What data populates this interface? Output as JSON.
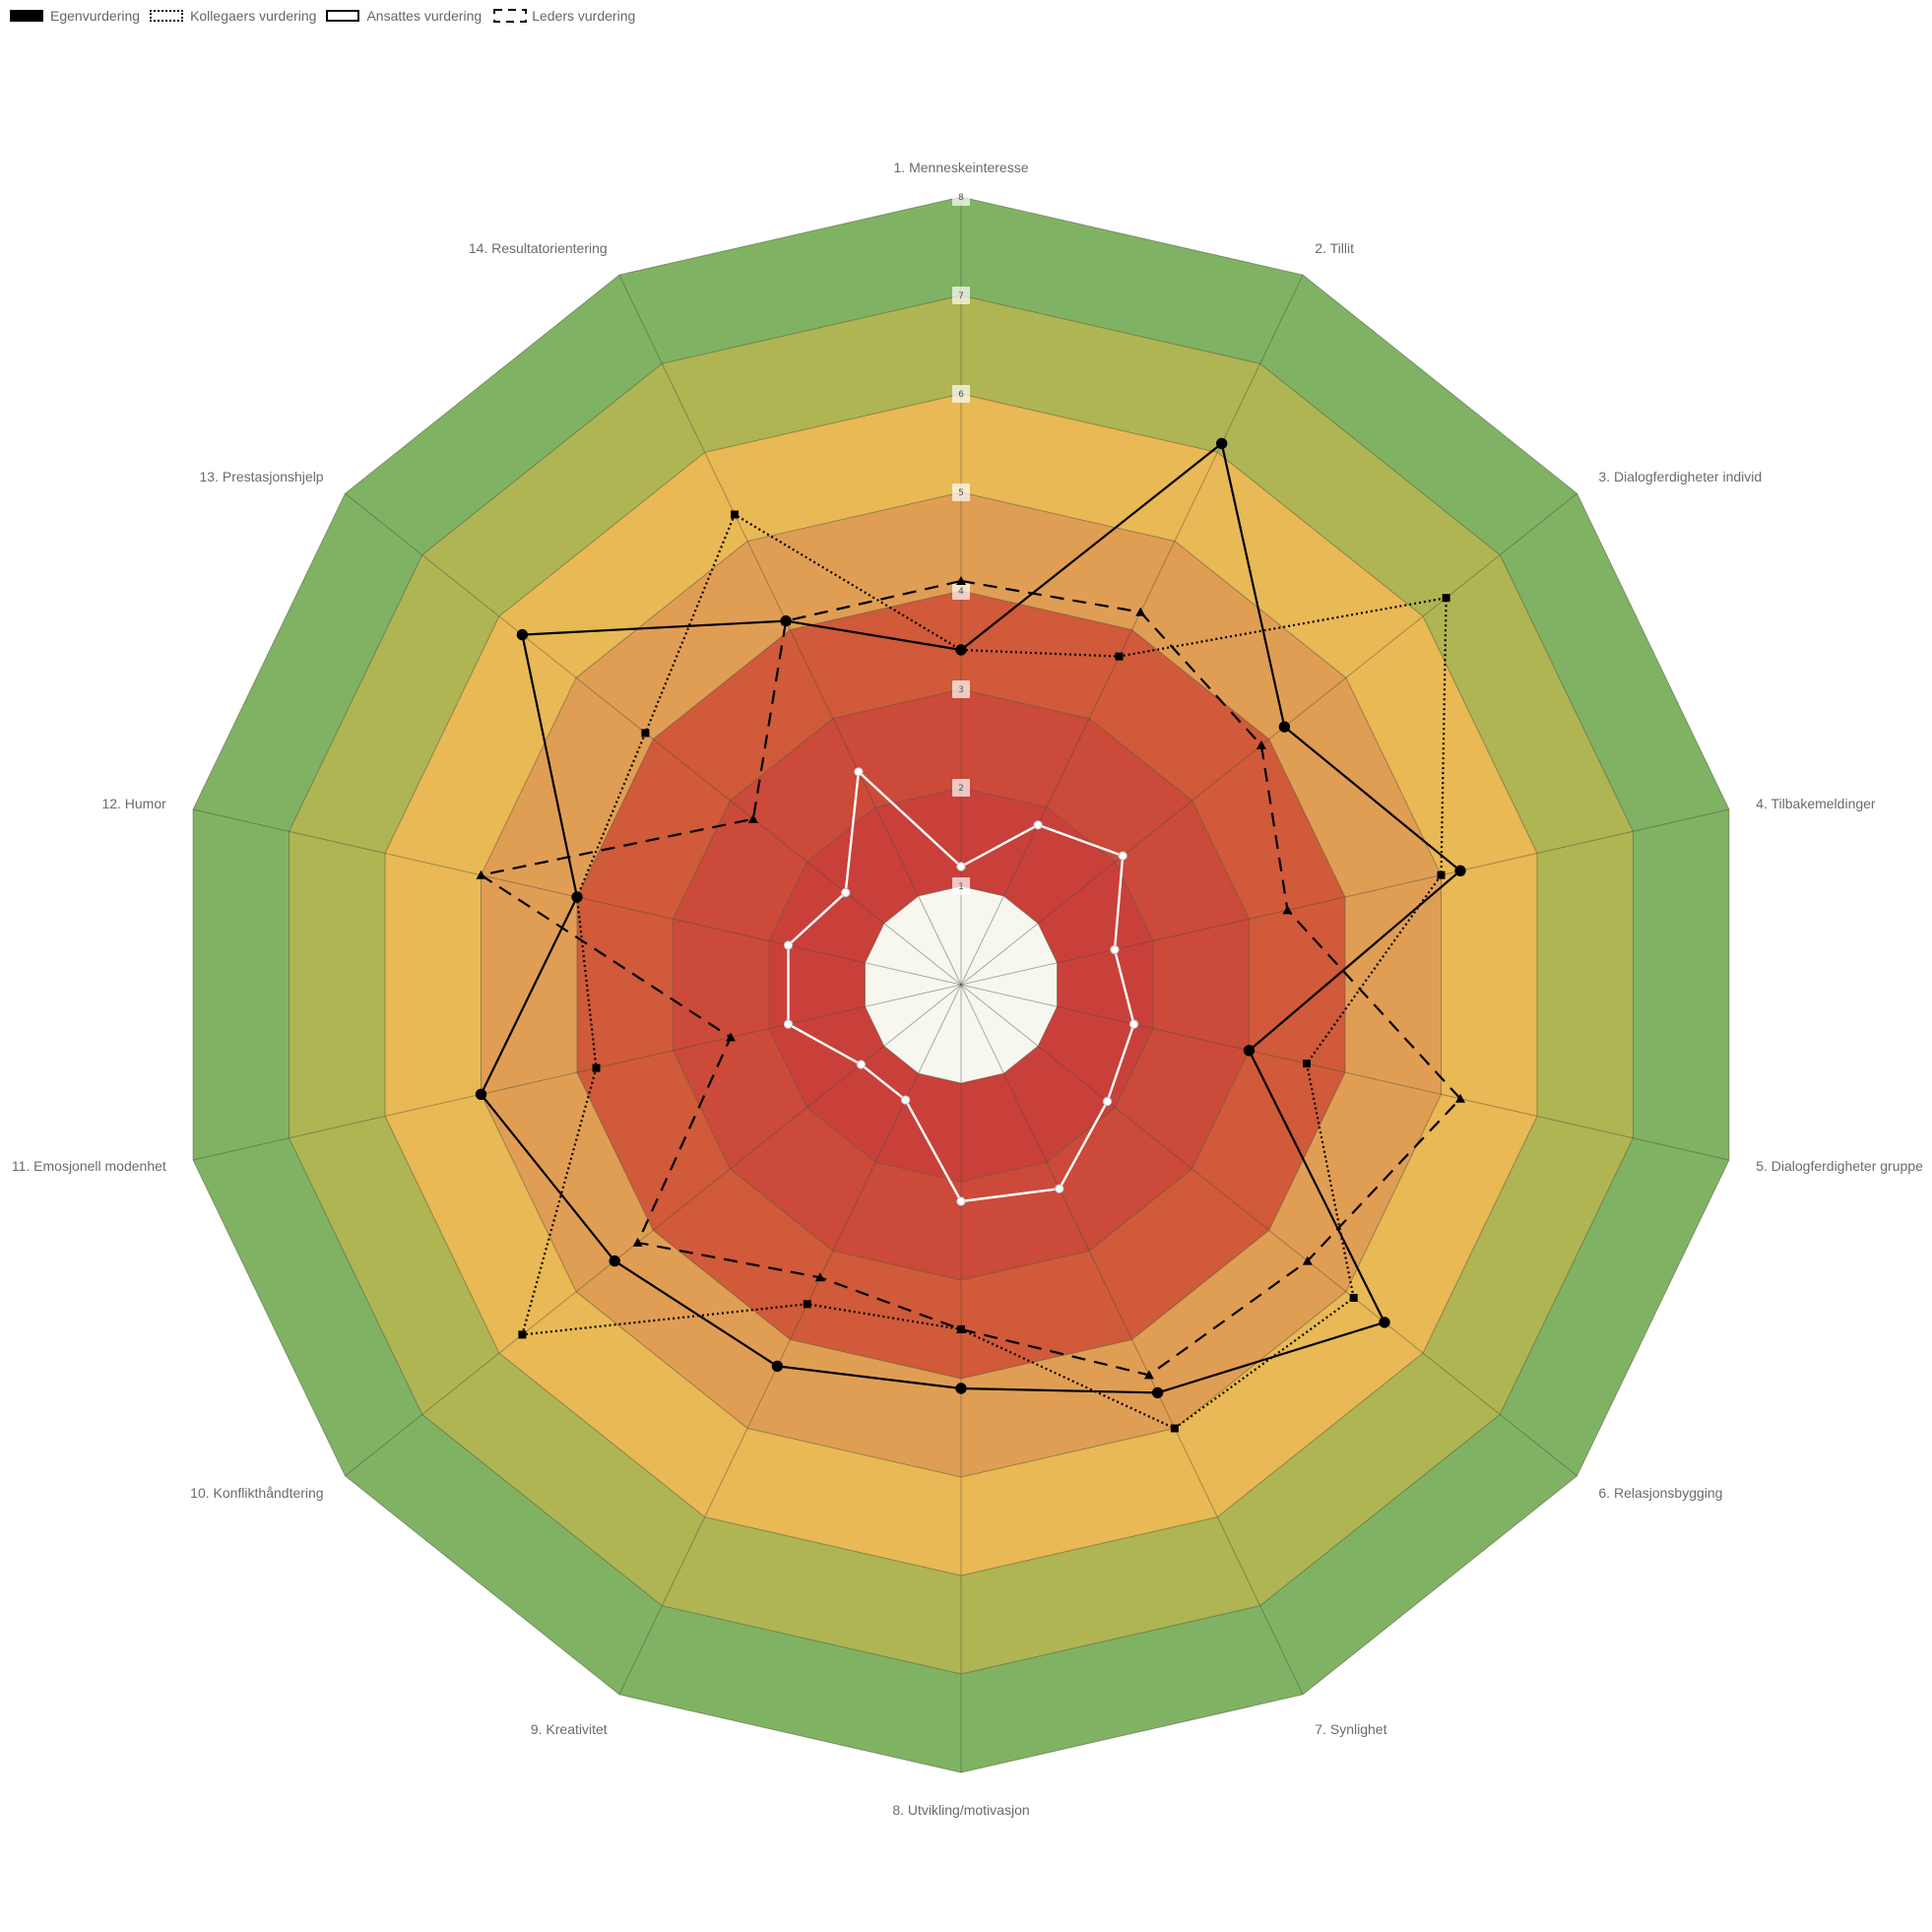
{
  "chart_data": {
    "type": "radar",
    "axes": [
      "1. Menneskeinteresse",
      "2. Tillit",
      "3. Dialogferdigheter individ",
      "4. Tilbakemeldinger",
      "5. Dialogferdigheter gruppe",
      "6. Relasjonsbygging",
      "7. Synlighet",
      "8. Utvikling/motivasjon",
      "9. Kreativitet",
      "10. Konflikthåndtering",
      "11. Emosjonell modenhet",
      "12. Humor",
      "13. Prestasjonshjelp",
      "14. Resultatorientering"
    ],
    "rlim": [
      0,
      8
    ],
    "ticks": [
      "1",
      "2",
      "3",
      "4",
      "5",
      "6",
      "7",
      "8"
    ],
    "band_colors": [
      "#f7f7f0",
      "#c9403a",
      "#cb4a39",
      "#d05a39",
      "#e09e54",
      "#e8b954",
      "#afb553",
      "#7fb363"
    ],
    "series": [
      {
        "name": "Egenvurdering",
        "style": "solid-black",
        "values": [
          3.4,
          6.1,
          4.2,
          5.2,
          3.0,
          5.5,
          4.6,
          4.1,
          4.3,
          4.5,
          5.0,
          4.0,
          5.7,
          4.1
        ]
      },
      {
        "name": "Kollegaers vurdering",
        "style": "dotted",
        "values": [
          3.4,
          3.7,
          6.3,
          5.0,
          3.6,
          5.1,
          5.0,
          3.5,
          3.6,
          5.7,
          3.8,
          4.0,
          4.1,
          5.3
        ]
      },
      {
        "name": "Ansattes vurdering",
        "style": "white",
        "values": [
          1.2,
          1.8,
          2.1,
          1.6,
          1.8,
          1.9,
          2.3,
          2.2,
          1.3,
          1.3,
          1.8,
          1.8,
          1.5,
          2.4
        ]
      },
      {
        "name": "Leders vurdering",
        "style": "dashed",
        "values": [
          4.1,
          4.2,
          3.9,
          3.4,
          5.2,
          4.5,
          4.4,
          3.5,
          3.3,
          4.2,
          2.4,
          5.0,
          2.7,
          4.1
        ]
      }
    ]
  }
}
